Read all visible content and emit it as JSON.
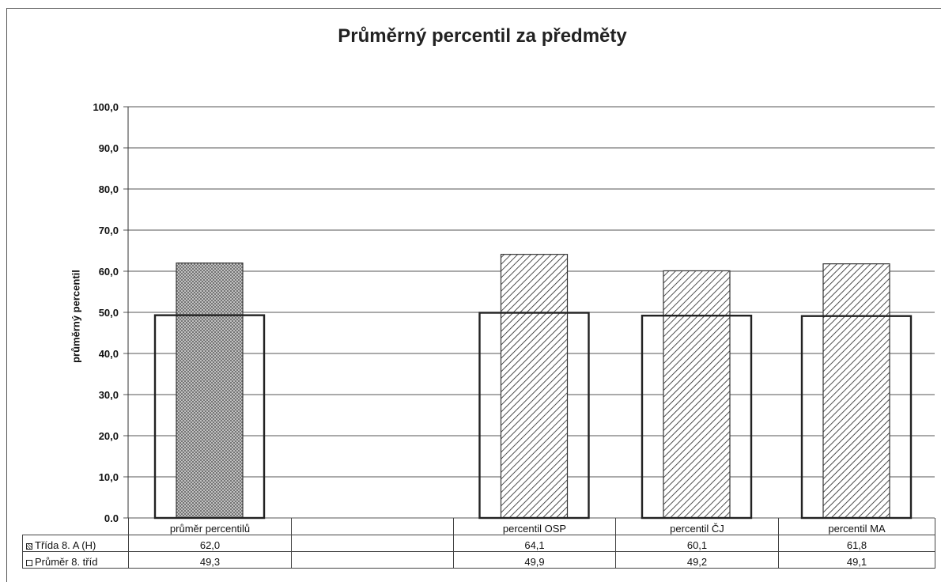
{
  "chart_data": {
    "type": "bar",
    "title": "Průměrný percentil za předměty",
    "xlabel": "",
    "ylabel": "průměrný percentil",
    "ylim": [
      0,
      100
    ],
    "y_ticks": [
      "0,0",
      "10,0",
      "20,0",
      "30,0",
      "40,0",
      "50,0",
      "60,0",
      "70,0",
      "80,0",
      "90,0",
      "100,0"
    ],
    "grid": true,
    "legend_placement": "data table below chart",
    "categories": [
      "průměr percentilů",
      "",
      "percentil OSP",
      "percentil ČJ",
      "percentil MA"
    ],
    "series": [
      {
        "name": "Třída 8. A (H)",
        "values": [
          62.0,
          null,
          64.1,
          60.1,
          61.8
        ],
        "labels": [
          "62,0",
          "",
          "64,1",
          "60,1",
          "61,8"
        ],
        "pattern": "hatched"
      },
      {
        "name": "Průměr 8. tříd",
        "values": [
          49.3,
          null,
          49.9,
          49.2,
          49.1
        ],
        "labels": [
          "49,3",
          "",
          "49,9",
          "49,2",
          "49,1"
        ],
        "pattern": "hollow"
      }
    ],
    "colors": {
      "ink": "#222222",
      "grid": "#555555",
      "background": "#ffffff"
    }
  }
}
